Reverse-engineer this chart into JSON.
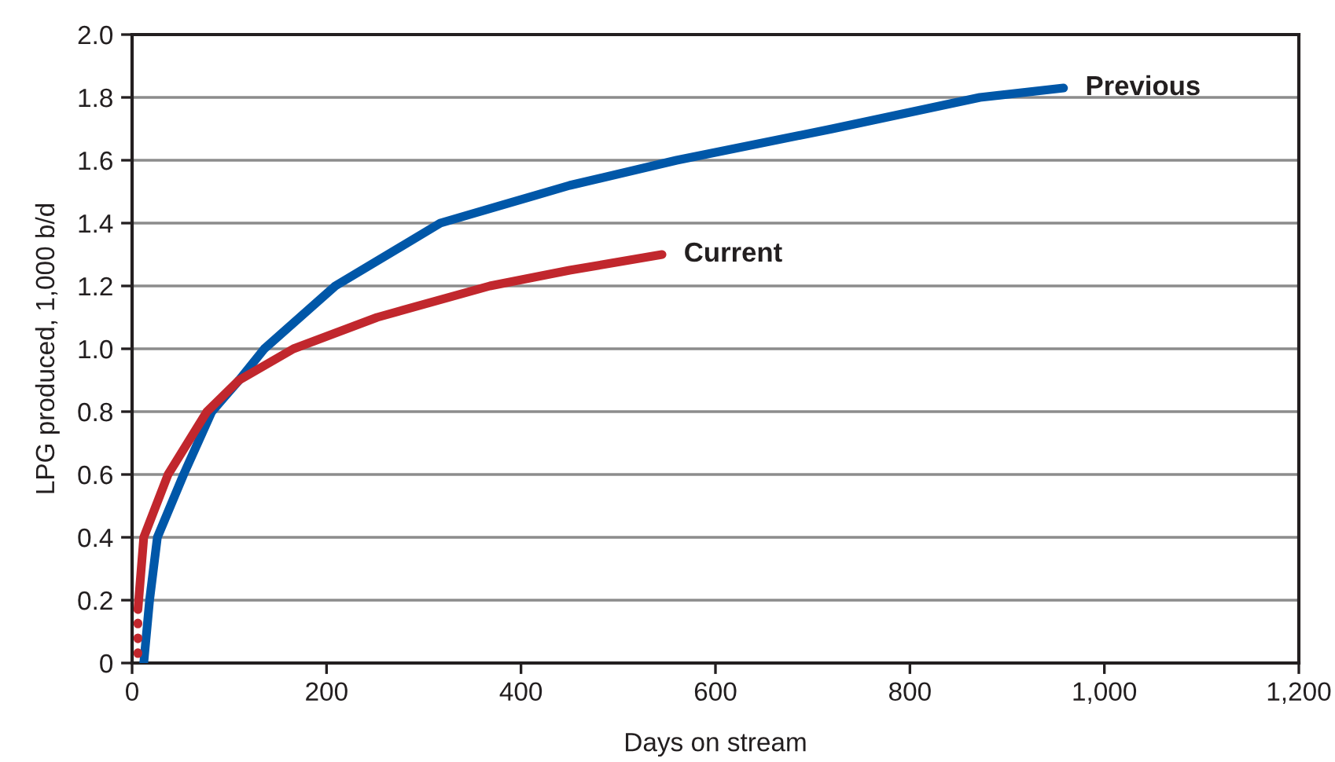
{
  "chart_data": {
    "type": "line",
    "xlabel": "Days on stream",
    "ylabel": "LPG produced, 1,000 b/d",
    "xlim": [
      0,
      1200
    ],
    "ylim": [
      0,
      2.0
    ],
    "xticks": [
      0,
      200,
      400,
      600,
      800,
      {
        "value": 1000,
        "label": "1,000"
      },
      {
        "value": 1200,
        "label": "1,200"
      }
    ],
    "yticks": [
      {
        "value": 0,
        "label": "0"
      },
      {
        "value": 0.2,
        "label": "0.2"
      },
      {
        "value": 0.4,
        "label": "0.4"
      },
      {
        "value": 0.6,
        "label": "0.6"
      },
      {
        "value": 0.8,
        "label": "0.8"
      },
      {
        "value": 1.0,
        "label": "1.0"
      },
      {
        "value": 1.2,
        "label": "1.2"
      },
      {
        "value": 1.4,
        "label": "1.4"
      },
      {
        "value": 1.6,
        "label": "1.6"
      },
      {
        "value": 1.8,
        "label": "1.8"
      },
      {
        "value": 2.0,
        "label": "2.0"
      }
    ],
    "grid": "y",
    "legend": false,
    "marker": "none",
    "series": [
      {
        "name": "Previous",
        "color": "#0057a8",
        "line_style": "solid",
        "x": [
          12,
          18,
          26,
          53,
          82,
          110,
          136,
          209,
          317,
          450,
          560,
          720,
          872,
          958
        ],
        "values": [
          0,
          0.2,
          0.4,
          0.6,
          0.8,
          0.9,
          1.0,
          1.2,
          1.4,
          1.52,
          1.6,
          1.7,
          1.8,
          1.83
        ]
      },
      {
        "name": "Current",
        "color": "#c1272d",
        "line_style": "solid",
        "x": [
          6,
          12,
          37,
          77,
          110,
          166,
          252,
          368,
          450,
          545
        ],
        "values": [
          0.17,
          0.4,
          0.6,
          0.8,
          0.9,
          1.0,
          1.1,
          1.2,
          1.25,
          1.3
        ]
      },
      {
        "color": "#c1272d",
        "line_style": "dotted",
        "x": [
          6,
          6
        ],
        "values": [
          0.03,
          0.14
        ]
      }
    ]
  }
}
